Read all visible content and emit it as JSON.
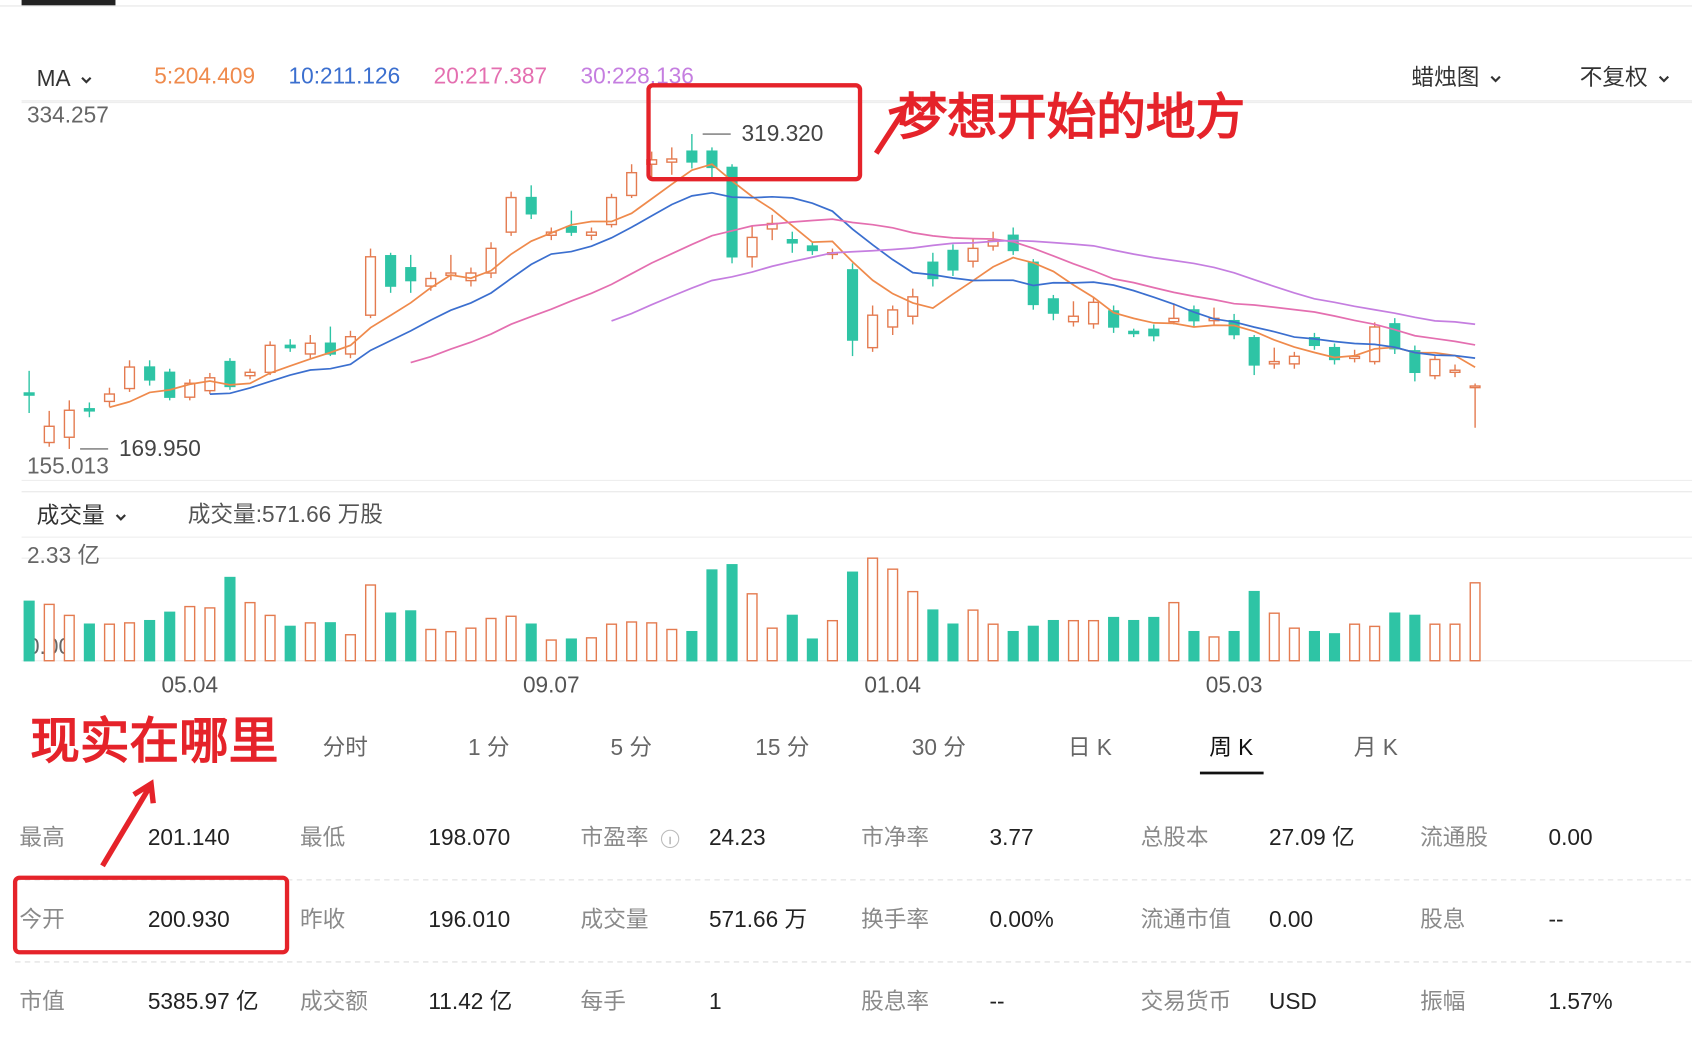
{
  "header": {
    "indicator": "MA",
    "ma": [
      {
        "label": "5:204.409",
        "period": 5,
        "color": "#ef8a4c"
      },
      {
        "label": "10:211.126",
        "period": 10,
        "color": "#3b6fcf"
      },
      {
        "label": "20:217.387",
        "period": 20,
        "color": "#e46fb0"
      },
      {
        "label": "30:228.136",
        "period": 30,
        "color": "#c57ee0"
      }
    ],
    "chart_style": "蜡烛图",
    "adjust": "不复权"
  },
  "chart_data": [
    {
      "type": "candlestick",
      "up_color": "#e47b50",
      "down_color": "#2ec4a5",
      "categories": [
        null,
        null,
        null,
        null,
        null,
        null,
        null,
        null,
        "05.04",
        null,
        null,
        null,
        null,
        null,
        null,
        null,
        null,
        null,
        null,
        null,
        null,
        null,
        null,
        null,
        null,
        null,
        "09.07",
        null,
        null,
        null,
        null,
        null,
        null,
        null,
        null,
        null,
        null,
        null,
        null,
        null,
        null,
        null,
        null,
        "01.04",
        null,
        null,
        null,
        null,
        null,
        null,
        null,
        null,
        null,
        null,
        null,
        null,
        null,
        null,
        null,
        null,
        "05.03",
        null,
        null,
        null,
        null,
        null,
        null,
        null,
        null,
        null,
        null,
        null,
        null
      ],
      "open": [
        196.5,
        173,
        175.5,
        189,
        192.5,
        198.6,
        208.8,
        206.3,
        194.5,
        197.6,
        211.4,
        204.7,
        206.3,
        219.1,
        215,
        220.1,
        215,
        233.4,
        261.6,
        255.9,
        247.2,
        252.3,
        249.8,
        253.4,
        272.8,
        289.2,
        271.3,
        275.4,
        271.3,
        276.4,
        290.2,
        305,
        306,
        311.2,
        311.2,
        303.5,
        261.1,
        274.3,
        269.2,
        266.2,
        262.6,
        254.9,
        218,
        227.8,
        232.9,
        258.5,
        264.1,
        259,
        266.2,
        271.3,
        258.5,
        241.1,
        230.3,
        229.3,
        235.4,
        225.7,
        226.7,
        230.3,
        235.9,
        230.8,
        230.8,
        222.7,
        210.3,
        210.3,
        222.7,
        218,
        212.9,
        211.4,
        229.3,
        216.5,
        204.7,
        206.3,
        199.6
      ],
      "high": [
        207,
        188,
        193,
        192,
        199,
        212,
        212,
        208,
        203,
        206,
        213,
        208,
        221,
        222,
        224,
        228,
        226,
        265,
        263,
        262,
        254,
        262,
        256,
        268,
        292,
        295,
        275,
        283,
        275,
        291,
        305,
        311,
        313,
        319.32,
        313,
        305,
        276,
        281,
        273,
        268,
        265,
        258,
        238,
        238,
        246,
        263,
        267,
        270,
        273,
        275,
        260,
        243,
        240,
        242,
        238,
        227,
        229,
        239,
        238,
        237,
        234,
        224,
        218,
        216,
        225,
        220,
        217,
        230,
        232,
        219,
        214,
        210,
        201
      ],
      "low": [
        187,
        171,
        169.95,
        185,
        190,
        197,
        200,
        193,
        193,
        196,
        198,
        203,
        205,
        216,
        213,
        214,
        213,
        232,
        244,
        244,
        245,
        250,
        247,
        251,
        271,
        279,
        269,
        271,
        269,
        275,
        289,
        298,
        300,
        303,
        298,
        258,
        256,
        269,
        263,
        262,
        260,
        214,
        216,
        224,
        229,
        247,
        252,
        256,
        264,
        262,
        236,
        231,
        228,
        227,
        225,
        223,
        221,
        229,
        228,
        229,
        222,
        205,
        208,
        208,
        217,
        210,
        211,
        210,
        215,
        202,
        203,
        204,
        180
      ],
      "close": [
        195.5,
        180.7,
        188.3,
        188,
        196,
        208.8,
        202.7,
        194.5,
        201.1,
        203.7,
        199.6,
        206.3,
        219.1,
        218,
        220.1,
        215,
        223.2,
        261.1,
        247.2,
        249.8,
        250.8,
        253.4,
        253.4,
        265.1,
        289.2,
        281.5,
        272.8,
        272.8,
        272.8,
        289.2,
        301,
        307.1,
        307.5,
        306.1,
        303.5,
        261.1,
        270.3,
        276.9,
        267.7,
        264.1,
        263,
        221.6,
        233.4,
        235.9,
        242.1,
        250.8,
        254.9,
        265.1,
        268.7,
        264.1,
        238.5,
        234.4,
        232.9,
        239.5,
        227.8,
        224.7,
        223.7,
        231.9,
        230.8,
        231.9,
        224.2,
        209.8,
        211.4,
        213.9,
        219.1,
        212.4,
        213.9,
        227.8,
        217.5,
        206.3,
        212.4,
        207.3,
        199.8
      ],
      "ylim": [
        155.013,
        334.257
      ],
      "yticks": [
        155.013,
        334.257
      ],
      "high_marker": {
        "value": 319.32,
        "label": "319.320",
        "index": 33
      },
      "low_marker": {
        "value": 169.95,
        "label": "169.950",
        "index": 2
      }
    },
    {
      "type": "bar",
      "title": "成交量",
      "subtitle": "成交量:571.66 万股",
      "values": [
        1.35,
        1.28,
        1.03,
        0.83,
        0.83,
        0.86,
        0.91,
        1.1,
        1.23,
        1.2,
        1.89,
        1.32,
        1.03,
        0.78,
        0.86,
        0.86,
        0.59,
        1.72,
        1.08,
        1.13,
        0.71,
        0.66,
        0.74,
        0.96,
        1.01,
        0.83,
        0.47,
        0.49,
        0.52,
        0.83,
        0.88,
        0.86,
        0.71,
        0.66,
        2.06,
        2.18,
        1.52,
        0.74,
        1.03,
        0.49,
        0.91,
        2.01,
        2.33,
        2.08,
        1.57,
        1.15,
        0.83,
        1.15,
        0.83,
        0.66,
        0.78,
        0.91,
        0.91,
        0.91,
        0.98,
        0.91,
        0.98,
        1.32,
        0.66,
        0.54,
        0.66,
        1.57,
        1.08,
        0.74,
        0.66,
        0.61,
        0.83,
        0.78,
        1.08,
        1.03,
        0.83,
        0.83,
        1.77
      ],
      "ylim": [
        0,
        2.33
      ],
      "yticks": [
        {
          "value": 0,
          "label": "0.00"
        },
        {
          "value": 2.33,
          "label": "2.33 亿"
        }
      ]
    }
  ],
  "tabs": {
    "items": [
      "分时",
      "1 分",
      "5 分",
      "15 分",
      "30 分",
      "日 K",
      "周 K",
      "月 K"
    ],
    "active": 6
  },
  "stats": {
    "rows": [
      [
        {
          "label": "最高",
          "value": "201.140"
        },
        {
          "label": "最低",
          "value": "198.070"
        },
        {
          "label": "市盈率",
          "value": "24.23"
        },
        {
          "label": "市净率",
          "value": "3.77"
        },
        {
          "label": "总股本",
          "value": "27.09 亿"
        },
        {
          "label": "流通股",
          "value": "0.00"
        }
      ],
      [
        {
          "label": "今开",
          "value": "200.930"
        },
        {
          "label": "昨收",
          "value": "196.010"
        },
        {
          "label": "成交量",
          "value": "571.66 万"
        },
        {
          "label": "换手率",
          "value": "0.00%"
        },
        {
          "label": "流通市值",
          "value": "0.00"
        },
        {
          "label": "股息",
          "value": "--"
        }
      ],
      [
        {
          "label": "市值",
          "value": "5385.97 亿"
        },
        {
          "label": "成交额",
          "value": "11.42 亿"
        },
        {
          "label": "每手",
          "value": "1"
        },
        {
          "label": "股息率",
          "value": "--"
        },
        {
          "label": "交易货币",
          "value": "USD"
        },
        {
          "label": "振幅",
          "value": "1.57%"
        }
      ]
    ]
  },
  "annotations": {
    "top": "梦想开始的地方",
    "bottom": "现实在哪里"
  }
}
